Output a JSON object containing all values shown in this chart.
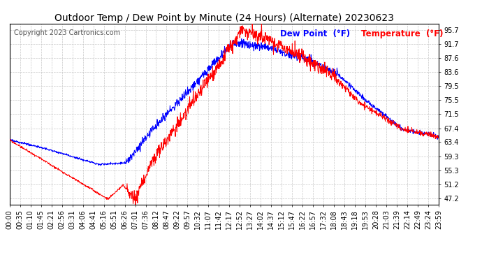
{
  "title": "Outdoor Temp / Dew Point by Minute (24 Hours) (Alternate) 20230623",
  "copyright": "Copyright 2023 Cartronics.com",
  "legend_dew": "Dew Point  (°F)",
  "legend_temp": "Temperature  (°F)",
  "y_ticks": [
    47.2,
    51.2,
    55.3,
    59.3,
    63.4,
    67.4,
    71.5,
    75.5,
    79.5,
    83.6,
    87.6,
    91.7,
    95.7
  ],
  "ylim": [
    45.5,
    97.5
  ],
  "x_tick_labels": [
    "00:00",
    "00:35",
    "01:10",
    "01:45",
    "02:21",
    "02:56",
    "03:31",
    "04:06",
    "04:41",
    "05:16",
    "05:51",
    "06:26",
    "07:01",
    "07:36",
    "08:12",
    "08:47",
    "09:22",
    "09:57",
    "10:32",
    "11:07",
    "11:42",
    "12:17",
    "12:52",
    "13:27",
    "14:02",
    "14:37",
    "15:12",
    "15:47",
    "16:22",
    "16:57",
    "17:32",
    "18:08",
    "18:43",
    "19:18",
    "19:53",
    "20:28",
    "21:03",
    "21:39",
    "22:14",
    "22:49",
    "23:24",
    "23:59"
  ],
  "color_temp": "#ff0000",
  "color_dew": "#0000ff",
  "background_color": "#ffffff",
  "grid_color": "#c8c8c8",
  "title_fontsize": 10,
  "copyright_fontsize": 7,
  "legend_fontsize": 8.5,
  "tick_fontsize": 7
}
